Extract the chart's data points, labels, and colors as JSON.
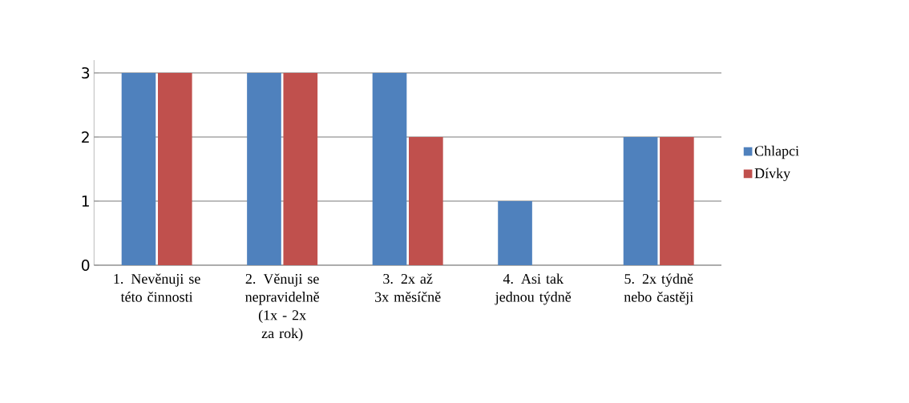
{
  "chart_data": {
    "type": "bar",
    "categories": [
      "1. Nevěnuji se této činnosti",
      "2. Věnuji se nepravidelně (1x - 2x za rok)",
      "3. 2x až 3x měsíčně",
      "4. Asi tak jednou týdně",
      "5. 2x týdně nebo častěji"
    ],
    "series": [
      {
        "name": "Chlapci",
        "color": "#4f81bd",
        "values": [
          3,
          3,
          3,
          1,
          2
        ]
      },
      {
        "name": "Dívky",
        "color": "#c0504d",
        "values": [
          3,
          3,
          2,
          0,
          2
        ]
      }
    ],
    "ylim": [
      0,
      3.2
    ],
    "yticks": [
      0,
      1,
      2,
      3
    ],
    "grid": "y",
    "legend": "right"
  }
}
